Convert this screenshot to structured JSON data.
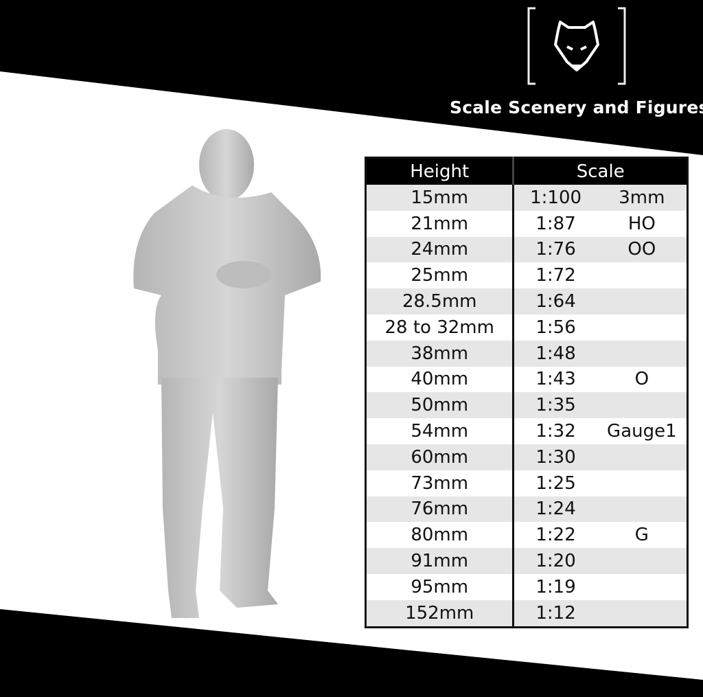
{
  "brand": {
    "name": "Scale Scenery and Figures",
    "logo_icon": "wolf-head-icon"
  },
  "colors": {
    "band": "#000000",
    "row_alt": "#e6e6e6",
    "figure": "#c8c8c8"
  },
  "table": {
    "headers": {
      "height": "Height",
      "scale": "Scale"
    },
    "rows": [
      {
        "height": "15mm",
        "scale": "1:100",
        "gauge": "3mm"
      },
      {
        "height": "21mm",
        "scale": "1:87",
        "gauge": "HO"
      },
      {
        "height": "24mm",
        "scale": "1:76",
        "gauge": "OO"
      },
      {
        "height": "25mm",
        "scale": "1:72",
        "gauge": ""
      },
      {
        "height": "28.5mm",
        "scale": "1:64",
        "gauge": ""
      },
      {
        "height": "28 to 32mm",
        "scale": "1:56",
        "gauge": ""
      },
      {
        "height": "38mm",
        "scale": "1:48",
        "gauge": ""
      },
      {
        "height": "40mm",
        "scale": "1:43",
        "gauge": "O"
      },
      {
        "height": "50mm",
        "scale": "1:35",
        "gauge": ""
      },
      {
        "height": "54mm",
        "scale": "1:32",
        "gauge": "Gauge1"
      },
      {
        "height": "60mm",
        "scale": "1:30",
        "gauge": ""
      },
      {
        "height": "73mm",
        "scale": "1:25",
        "gauge": ""
      },
      {
        "height": "76mm",
        "scale": "1:24",
        "gauge": ""
      },
      {
        "height": "80mm",
        "scale": "1:22",
        "gauge": "G"
      },
      {
        "height": "91mm",
        "scale": "1:20",
        "gauge": ""
      },
      {
        "height": "95mm",
        "scale": "1:19",
        "gauge": ""
      },
      {
        "height": "152mm",
        "scale": "1:12",
        "gauge": ""
      }
    ]
  }
}
